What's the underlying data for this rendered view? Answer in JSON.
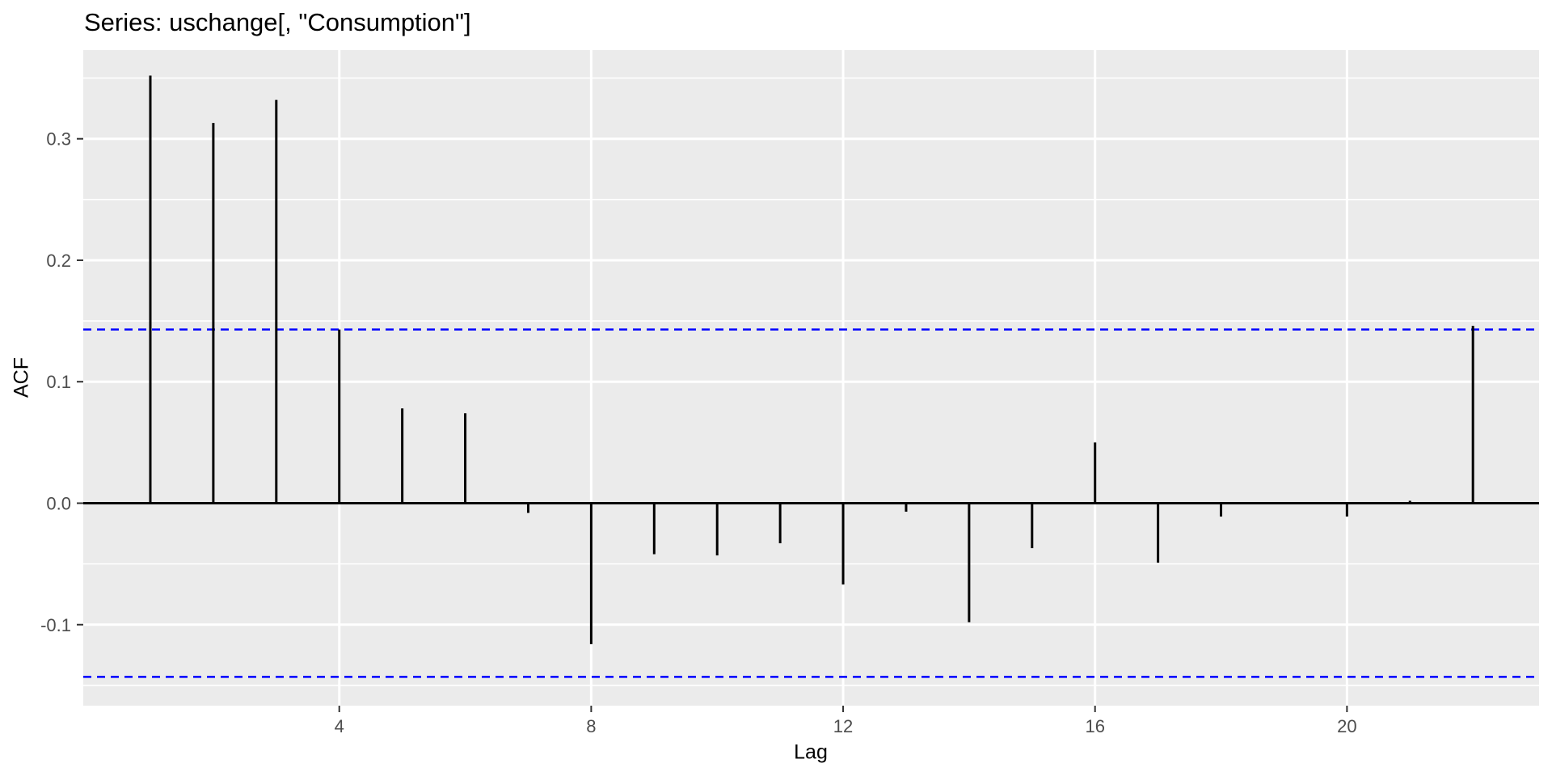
{
  "chart_data": {
    "type": "bar",
    "subtype": "acf-lollipop",
    "title": "Series: uschange[, \"Consumption\"]",
    "xlabel": "Lag",
    "ylabel": "ACF",
    "x": [
      1,
      2,
      3,
      4,
      5,
      6,
      7,
      8,
      9,
      10,
      11,
      12,
      13,
      14,
      15,
      16,
      17,
      18,
      19,
      20,
      21,
      22
    ],
    "values": [
      0.352,
      0.313,
      0.332,
      0.143,
      0.078,
      0.074,
      -0.008,
      -0.116,
      -0.042,
      -0.043,
      -0.033,
      -0.067,
      -0.007,
      -0.098,
      -0.037,
      0.05,
      -0.049,
      -0.011,
      0.0,
      -0.011,
      0.002,
      0.146
    ],
    "confidence_upper": 0.143,
    "confidence_lower": -0.143,
    "x_tick_values": [
      4,
      8,
      12,
      16,
      20
    ],
    "x_tick_labels": [
      "4",
      "8",
      "12",
      "16",
      "20"
    ],
    "y_tick_values": [
      0.3,
      0.2,
      0.1,
      0.0,
      -0.1
    ],
    "y_tick_labels": [
      "0.3",
      "0.2",
      "0.1",
      "0.0",
      "-0.1"
    ],
    "y_minor_gridlines": [
      0.35,
      0.25,
      0.15,
      -0.05,
      -0.15
    ],
    "xlim": [
      -0.065,
      23.05
    ],
    "ylim": [
      -0.1667,
      0.373
    ],
    "grid": "on",
    "legend": "none",
    "colors": {
      "bar": "#000000",
      "zero_line": "#000000",
      "confidence_line": "#0000FF",
      "panel_background": "#EBEBEB",
      "gridline": "#FFFFFF",
      "tick_mark": "#333333",
      "tick_label": "#4D4D4D",
      "axis_title": "#000000",
      "plot_title": "#000000",
      "outer_background": "#FFFFFF"
    }
  }
}
